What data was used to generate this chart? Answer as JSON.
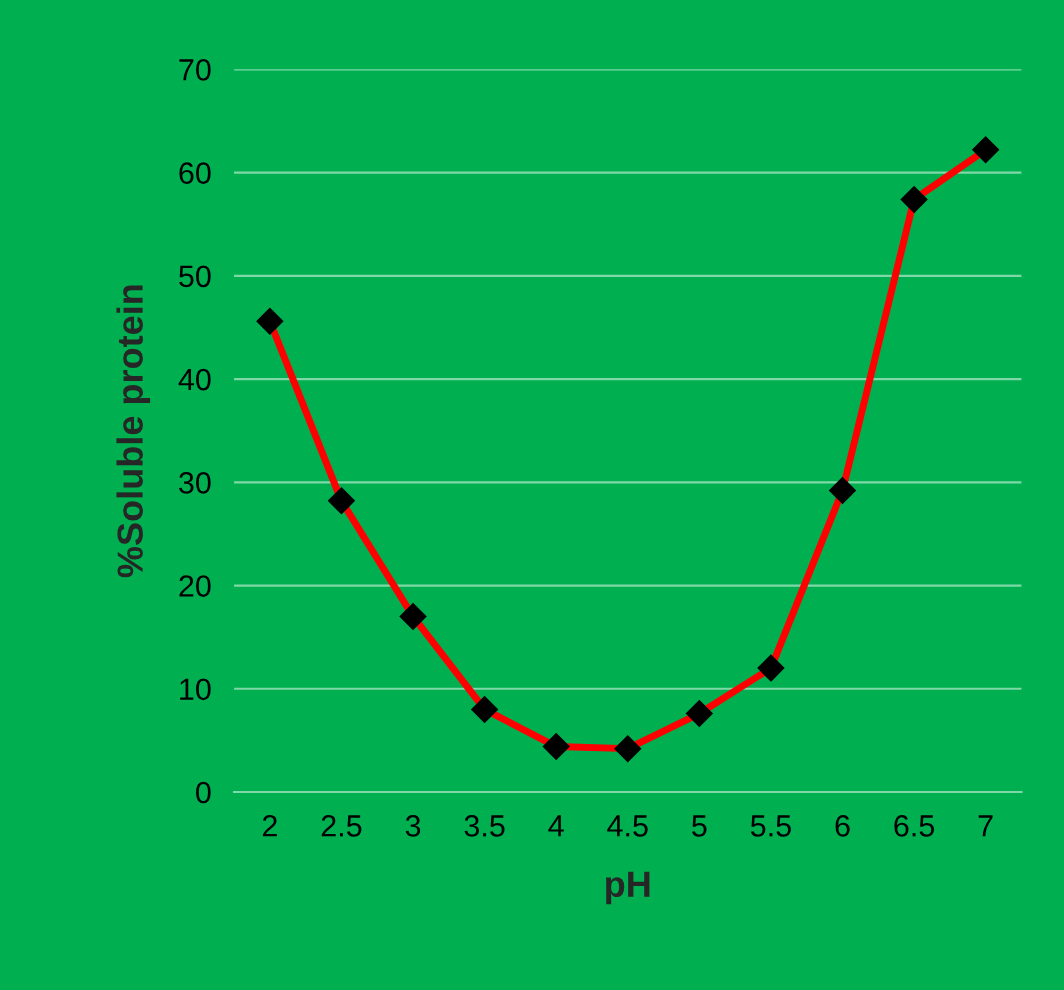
{
  "chart_data": {
    "type": "line",
    "xlabel": "pH",
    "ylabel": "%Soluble protein",
    "categories": [
      "2",
      "2.5",
      "3",
      "3.5",
      "4",
      "4.5",
      "5",
      "5.5",
      "6",
      "6.5",
      "7"
    ],
    "series": [
      {
        "color": "#ff0000",
        "values": [
          45.6,
          28.2,
          17,
          8,
          4.4,
          4.2,
          7.6,
          12,
          29.2,
          57.4,
          62.2
        ]
      }
    ],
    "ylim": [
      0,
      70
    ],
    "yticks": [
      0,
      10,
      20,
      30,
      40,
      50,
      60,
      70
    ],
    "grid": "y",
    "marker": "diamond",
    "line_style": "solid",
    "legend": false
  }
}
